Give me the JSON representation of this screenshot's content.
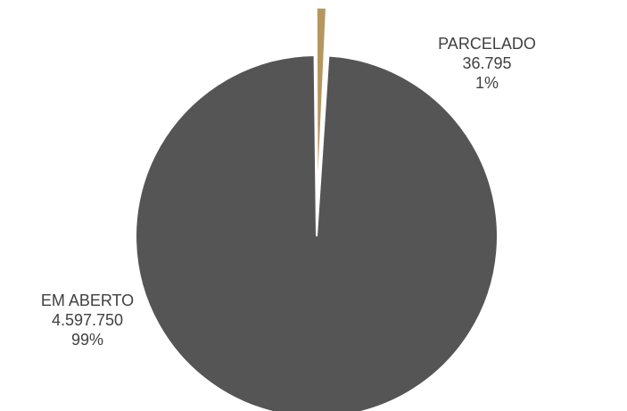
{
  "chart_data": {
    "type": "pie",
    "slices": [
      {
        "label": "EM ABERTO",
        "value": 4597750,
        "value_text": "4.597.750",
        "percent_text": "99%",
        "color": "#555555"
      },
      {
        "label": "PARCELADO",
        "value": 36795,
        "value_text": "36.795",
        "percent_text": "1%",
        "color": "#B5965E"
      }
    ],
    "legend": "none",
    "explode_smaller_slice": true
  }
}
